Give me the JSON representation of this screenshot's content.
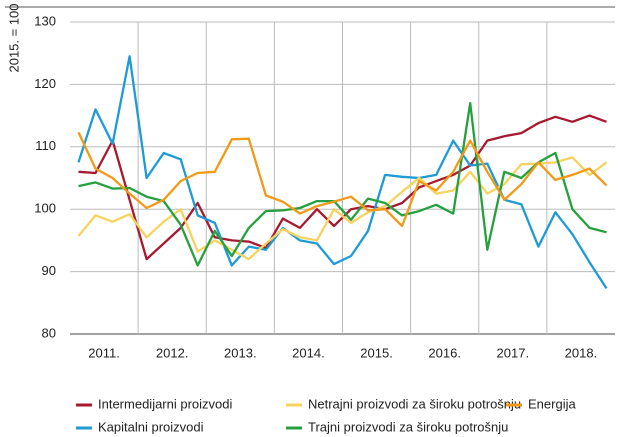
{
  "chart_data": {
    "type": "line",
    "y_label": "2015. = 100",
    "categories": [
      null,
      "2011.",
      null,
      null,
      null,
      "2012.",
      null,
      null,
      null,
      "2013.",
      null,
      null,
      null,
      "2014.",
      null,
      null,
      null,
      "2015.",
      null,
      null,
      null,
      "2016.",
      null,
      null,
      null,
      "2017.",
      null,
      null,
      null,
      "2018.",
      null,
      null
    ],
    "ylim": [
      80,
      130
    ],
    "yticks": [
      80,
      90,
      100,
      110,
      120,
      130
    ],
    "grid": true,
    "series": [
      {
        "name": "Intermedijarni proizvodi",
        "color": "#a6192e",
        "values": [
          106,
          105.8,
          111,
          101.5,
          92,
          94.5,
          97,
          101,
          95.5,
          95,
          94.8,
          93.8,
          98.5,
          97,
          100,
          97.3,
          100,
          100.5,
          100,
          101,
          103.5,
          104.5,
          105.5,
          107,
          111,
          111.7,
          112.2,
          113.8,
          114.8,
          114,
          115,
          114
        ]
      },
      {
        "name": "Kapitalni proizvodi",
        "color": "#1e9bd7",
        "values": [
          107.5,
          116,
          110.5,
          124.5,
          105,
          109,
          108,
          99,
          97.8,
          91,
          94,
          93.5,
          97,
          95,
          94.5,
          91.2,
          92.5,
          96.5,
          105.5,
          105.2,
          105,
          105.5,
          111,
          107,
          107.3,
          101.5,
          100.8,
          94,
          99.5,
          96,
          91.5,
          87.3
        ]
      },
      {
        "name": "Netrajni proizvodi za široku potrošnju",
        "color": "#f7d25e",
        "values": [
          95.7,
          99,
          98,
          99.2,
          95.5,
          98,
          100,
          93.2,
          95,
          93.5,
          92,
          94.5,
          96.8,
          95.5,
          95,
          100,
          97.8,
          99.5,
          100.5,
          102.8,
          105,
          102.5,
          103,
          106,
          102.5,
          104,
          107.2,
          107.3,
          107.5,
          108.3,
          105.5,
          107.5
        ]
      },
      {
        "name": "Trajni proizvodi za široku potrošnju",
        "color": "#26a03f",
        "values": [
          103.7,
          104.3,
          103.3,
          103.4,
          102,
          101.3,
          97.5,
          91,
          96.5,
          92.5,
          97,
          99.7,
          99.8,
          100.2,
          101.3,
          101.3,
          98.3,
          101.7,
          101,
          99,
          99.7,
          100.7,
          99.3,
          117,
          93.5,
          106,
          105,
          107.5,
          109,
          100,
          97,
          96.3
        ]
      },
      {
        "name": "Energija",
        "color": "#f29a18",
        "values": [
          112.3,
          106.5,
          105,
          102.5,
          100.2,
          101.5,
          104.5,
          105.8,
          106,
          111.2,
          111.3,
          102.2,
          101.2,
          99.3,
          100.5,
          101.2,
          102,
          99.8,
          100,
          97.3,
          104.5,
          103,
          106,
          111,
          106,
          101.5,
          104,
          107.5,
          104.7,
          105.5,
          106.5,
          103.8
        ]
      }
    ]
  }
}
